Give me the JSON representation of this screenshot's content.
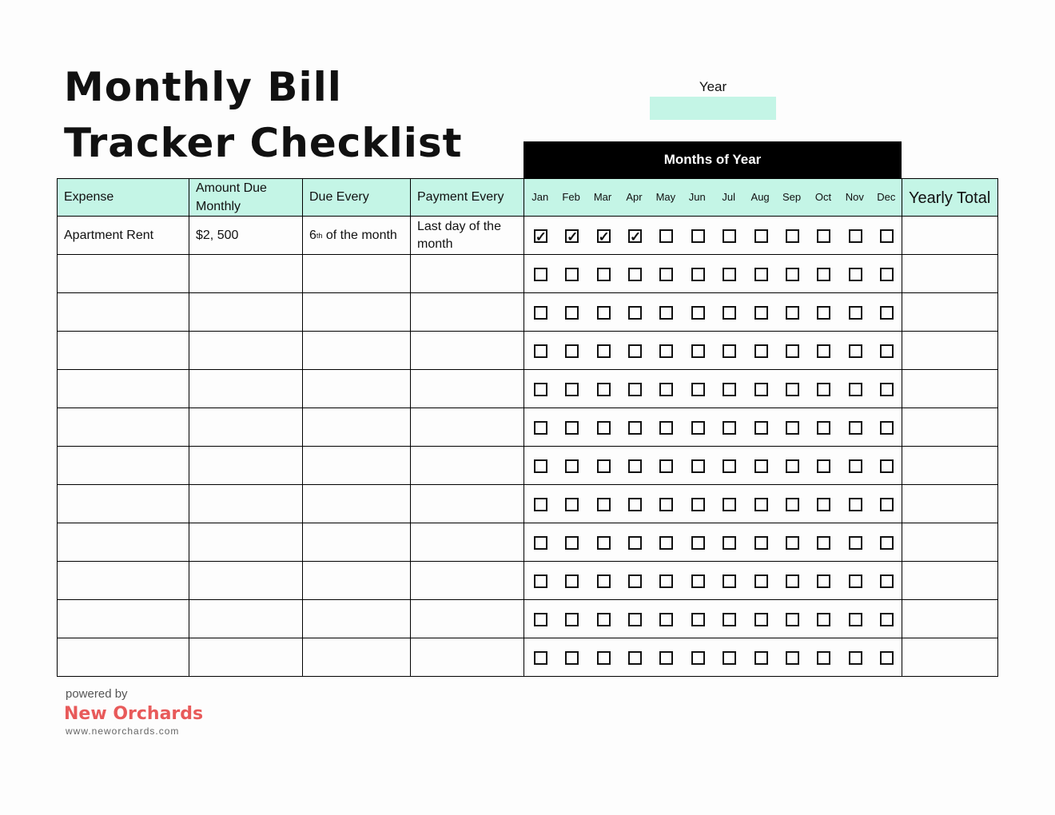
{
  "title": {
    "line1": "Monthly Bill",
    "line2": "Tracker Checklist"
  },
  "year": {
    "label": "Year",
    "value": ""
  },
  "months_banner": "Months of Year",
  "columns": {
    "expense": "Expense",
    "amount": "Amount Due Monthly",
    "due": "Due Every",
    "payment": "Payment Every",
    "total": "Yearly Total"
  },
  "months": [
    "Jan",
    "Feb",
    "Mar",
    "Apr",
    "May",
    "Jun",
    "Jul",
    "Aug",
    "Sep",
    "Oct",
    "Nov",
    "Dec"
  ],
  "rows": [
    {
      "expense": "Apartment Rent",
      "amount": "$2, 500",
      "due": {
        "num": "6",
        "sup": "th",
        "rest": " of the month"
      },
      "payment": "Last day of the month",
      "total": "",
      "checks": [
        true,
        true,
        true,
        true,
        false,
        false,
        false,
        false,
        false,
        false,
        false,
        false
      ]
    },
    {
      "expense": "",
      "amount": "",
      "due": null,
      "payment": "",
      "total": "",
      "checks": [
        false,
        false,
        false,
        false,
        false,
        false,
        false,
        false,
        false,
        false,
        false,
        false
      ]
    },
    {
      "expense": "",
      "amount": "",
      "due": null,
      "payment": "",
      "total": "",
      "checks": [
        false,
        false,
        false,
        false,
        false,
        false,
        false,
        false,
        false,
        false,
        false,
        false
      ]
    },
    {
      "expense": "",
      "amount": "",
      "due": null,
      "payment": "",
      "total": "",
      "checks": [
        false,
        false,
        false,
        false,
        false,
        false,
        false,
        false,
        false,
        false,
        false,
        false
      ]
    },
    {
      "expense": "",
      "amount": "",
      "due": null,
      "payment": "",
      "total": "",
      "checks": [
        false,
        false,
        false,
        false,
        false,
        false,
        false,
        false,
        false,
        false,
        false,
        false
      ]
    },
    {
      "expense": "",
      "amount": "",
      "due": null,
      "payment": "",
      "total": "",
      "checks": [
        false,
        false,
        false,
        false,
        false,
        false,
        false,
        false,
        false,
        false,
        false,
        false
      ]
    },
    {
      "expense": "",
      "amount": "",
      "due": null,
      "payment": "",
      "total": "",
      "checks": [
        false,
        false,
        false,
        false,
        false,
        false,
        false,
        false,
        false,
        false,
        false,
        false
      ]
    },
    {
      "expense": "",
      "amount": "",
      "due": null,
      "payment": "",
      "total": "",
      "checks": [
        false,
        false,
        false,
        false,
        false,
        false,
        false,
        false,
        false,
        false,
        false,
        false
      ]
    },
    {
      "expense": "",
      "amount": "",
      "due": null,
      "payment": "",
      "total": "",
      "checks": [
        false,
        false,
        false,
        false,
        false,
        false,
        false,
        false,
        false,
        false,
        false,
        false
      ]
    },
    {
      "expense": "",
      "amount": "",
      "due": null,
      "payment": "",
      "total": "",
      "checks": [
        false,
        false,
        false,
        false,
        false,
        false,
        false,
        false,
        false,
        false,
        false,
        false
      ]
    },
    {
      "expense": "",
      "amount": "",
      "due": null,
      "payment": "",
      "total": "",
      "checks": [
        false,
        false,
        false,
        false,
        false,
        false,
        false,
        false,
        false,
        false,
        false,
        false
      ]
    },
    {
      "expense": "",
      "amount": "",
      "due": null,
      "payment": "",
      "total": "",
      "checks": [
        false,
        false,
        false,
        false,
        false,
        false,
        false,
        false,
        false,
        false,
        false,
        false
      ]
    }
  ],
  "footer": {
    "powered": "powered by",
    "brand": "New Orchards",
    "url": "www.neworchards.com"
  },
  "colors": {
    "header_bg": "#c4f5e6",
    "banner_bg": "#000000",
    "brand": "#e85a5a"
  }
}
